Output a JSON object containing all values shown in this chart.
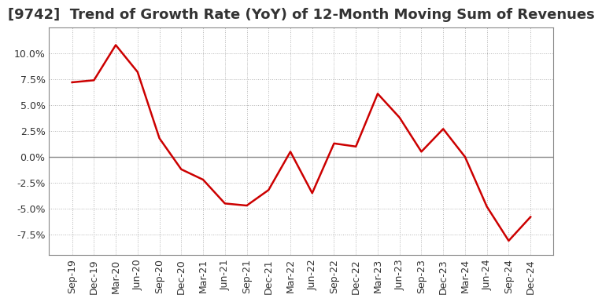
{
  "title": "[9742]  Trend of Growth Rate (YoY) of 12-Month Moving Sum of Revenues",
  "x_labels": [
    "Sep-19",
    "Dec-19",
    "Mar-20",
    "Jun-20",
    "Sep-20",
    "Dec-20",
    "Mar-21",
    "Jun-21",
    "Sep-21",
    "Dec-21",
    "Mar-22",
    "Jun-22",
    "Sep-22",
    "Dec-22",
    "Mar-23",
    "Jun-23",
    "Sep-23",
    "Dec-23",
    "Mar-24",
    "Jun-24",
    "Sep-24",
    "Dec-24"
  ],
  "y_values": [
    7.2,
    7.4,
    10.8,
    8.2,
    1.8,
    -1.2,
    -2.2,
    -4.5,
    -4.7,
    -3.2,
    0.5,
    -3.5,
    1.3,
    1.0,
    6.1,
    3.8,
    0.5,
    2.7,
    0.0,
    -4.8,
    -8.1,
    -5.8
  ],
  "line_color": "#cc0000",
  "background_color": "#ffffff",
  "grid_color": "#aaaaaa",
  "zero_line_color": "#888888",
  "border_color": "#888888",
  "ylim": [
    -9.5,
    12.5
  ],
  "yticks": [
    -7.5,
    -5.0,
    -2.5,
    0.0,
    2.5,
    5.0,
    7.5,
    10.0
  ],
  "title_fontsize": 13,
  "tick_fontsize": 9,
  "title_color": "#333333"
}
